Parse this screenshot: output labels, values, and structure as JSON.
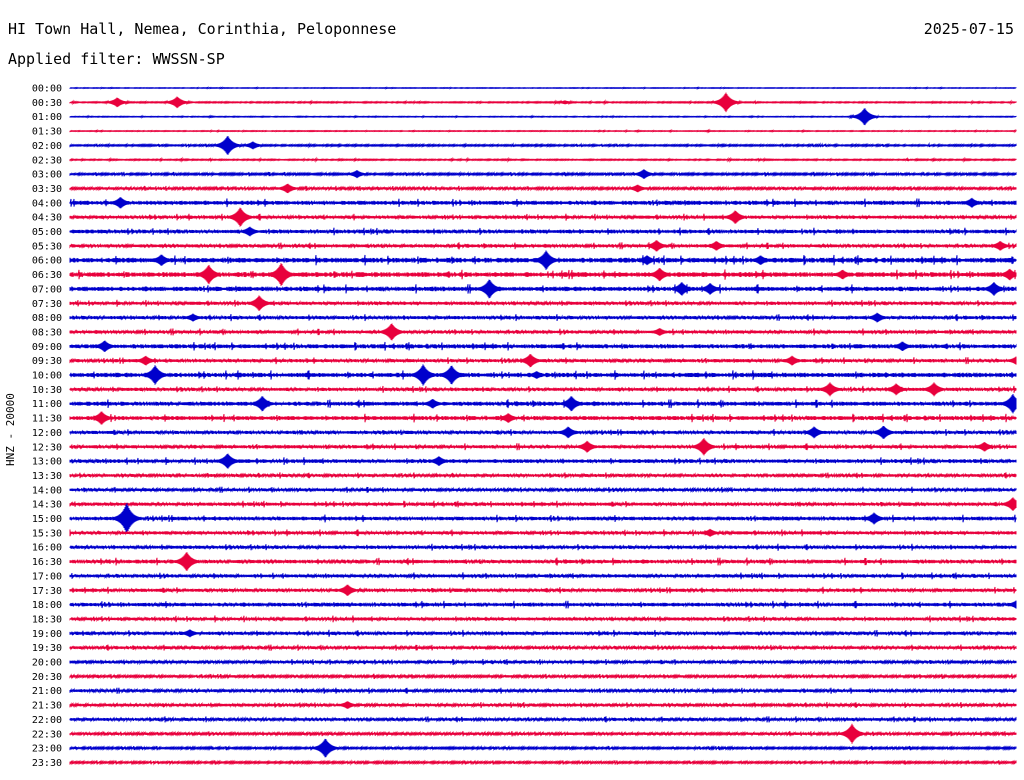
{
  "header": {
    "station": "HI Town Hall, Nemea, Corinthia, Peloponnese",
    "date": "2025-07-15",
    "filter": "Applied filter: WWSSN-SP",
    "channel": "HNZ - 20000"
  },
  "colors": {
    "trace_a": "#0000cc",
    "trace_b": "#e8003c",
    "background": "#ffffff"
  },
  "chart_data": {
    "type": "line",
    "subtype": "helicorder",
    "ylabel": "HNZ - 20000",
    "row_labels": [
      "00:00",
      "00:30",
      "01:00",
      "01:30",
      "02:00",
      "02:30",
      "03:00",
      "03:30",
      "04:00",
      "04:30",
      "05:00",
      "05:30",
      "06:00",
      "06:30",
      "07:00",
      "07:30",
      "08:00",
      "08:30",
      "09:00",
      "09:30",
      "10:00",
      "10:30",
      "11:00",
      "11:30",
      "12:00",
      "12:30",
      "13:00",
      "13:30",
      "14:00",
      "14:30",
      "15:00",
      "15:30",
      "16:00",
      "16:30",
      "17:00",
      "17:30",
      "18:00",
      "18:30",
      "19:00",
      "19:30",
      "20:00",
      "20:30",
      "21:00",
      "21:30",
      "22:00",
      "22:30",
      "23:00",
      "23:30"
    ],
    "x_range_minutes": [
      0,
      30
    ],
    "row_noise": [
      0.3,
      0.6,
      0.4,
      0.4,
      0.8,
      0.6,
      1.0,
      1.2,
      2.0,
      1.6,
      1.8,
      1.6,
      2.4,
      2.4,
      2.2,
      1.6,
      1.6,
      1.6,
      2.0,
      1.6,
      2.2,
      1.6,
      2.0,
      2.0,
      1.6,
      1.6,
      1.8,
      1.4,
      1.4,
      1.6,
      1.8,
      1.6,
      1.6,
      1.8,
      1.6,
      1.6,
      1.8,
      1.6,
      1.6,
      1.4,
      1.4,
      1.2,
      1.4,
      1.4,
      1.4,
      1.2,
      1.0,
      1.0
    ],
    "events": [
      {
        "row": 1,
        "minute": 1.5,
        "amplitude": 5
      },
      {
        "row": 1,
        "minute": 3.4,
        "amplitude": 6
      },
      {
        "row": 1,
        "minute": 15.7,
        "amplitude": 2
      },
      {
        "row": 1,
        "minute": 20.8,
        "amplitude": 10
      },
      {
        "row": 2,
        "minute": 25.2,
        "amplitude": 9
      },
      {
        "row": 4,
        "minute": 5.0,
        "amplitude": 10
      },
      {
        "row": 4,
        "minute": 5.8,
        "amplitude": 4
      },
      {
        "row": 6,
        "minute": 9.1,
        "amplitude": 4
      },
      {
        "row": 6,
        "minute": 18.2,
        "amplitude": 5
      },
      {
        "row": 7,
        "minute": 6.9,
        "amplitude": 5
      },
      {
        "row": 7,
        "minute": 18.0,
        "amplitude": 4
      },
      {
        "row": 8,
        "minute": 1.6,
        "amplitude": 6
      },
      {
        "row": 8,
        "minute": 28.6,
        "amplitude": 5
      },
      {
        "row": 9,
        "minute": 5.4,
        "amplitude": 10
      },
      {
        "row": 9,
        "minute": 21.1,
        "amplitude": 7
      },
      {
        "row": 10,
        "minute": 5.7,
        "amplitude": 5
      },
      {
        "row": 11,
        "minute": 18.6,
        "amplitude": 6
      },
      {
        "row": 11,
        "minute": 20.5,
        "amplitude": 5
      },
      {
        "row": 11,
        "minute": 29.5,
        "amplitude": 5
      },
      {
        "row": 12,
        "minute": 2.9,
        "amplitude": 6
      },
      {
        "row": 12,
        "minute": 15.1,
        "amplitude": 10
      },
      {
        "row": 12,
        "minute": 18.3,
        "amplitude": 5
      },
      {
        "row": 12,
        "minute": 21.9,
        "amplitude": 5
      },
      {
        "row": 13,
        "minute": 4.4,
        "amplitude": 10
      },
      {
        "row": 13,
        "minute": 6.7,
        "amplitude": 12
      },
      {
        "row": 13,
        "minute": 18.7,
        "amplitude": 7
      },
      {
        "row": 13,
        "minute": 24.5,
        "amplitude": 5
      },
      {
        "row": 13,
        "minute": 29.8,
        "amplitude": 6
      },
      {
        "row": 14,
        "minute": 13.3,
        "amplitude": 10
      },
      {
        "row": 14,
        "minute": 19.4,
        "amplitude": 7
      },
      {
        "row": 14,
        "minute": 20.3,
        "amplitude": 6
      },
      {
        "row": 14,
        "minute": 29.3,
        "amplitude": 7
      },
      {
        "row": 15,
        "minute": 6.0,
        "amplitude": 8
      },
      {
        "row": 16,
        "minute": 3.9,
        "amplitude": 4
      },
      {
        "row": 16,
        "minute": 25.6,
        "amplitude": 5
      },
      {
        "row": 17,
        "minute": 10.2,
        "amplitude": 9
      },
      {
        "row": 17,
        "minute": 18.7,
        "amplitude": 4
      },
      {
        "row": 18,
        "minute": 1.1,
        "amplitude": 6
      },
      {
        "row": 18,
        "minute": 26.4,
        "amplitude": 5
      },
      {
        "row": 19,
        "minute": 2.4,
        "amplitude": 5
      },
      {
        "row": 19,
        "minute": 14.6,
        "amplitude": 7
      },
      {
        "row": 19,
        "minute": 22.9,
        "amplitude": 5
      },
      {
        "row": 19,
        "minute": 30.0,
        "amplitude": 4
      },
      {
        "row": 20,
        "minute": 2.7,
        "amplitude": 10
      },
      {
        "row": 20,
        "minute": 11.2,
        "amplitude": 11
      },
      {
        "row": 20,
        "minute": 12.1,
        "amplitude": 10
      },
      {
        "row": 20,
        "minute": 14.8,
        "amplitude": 4
      },
      {
        "row": 21,
        "minute": 24.1,
        "amplitude": 7
      },
      {
        "row": 21,
        "minute": 26.2,
        "amplitude": 6
      },
      {
        "row": 21,
        "minute": 27.4,
        "amplitude": 7
      },
      {
        "row": 22,
        "minute": 6.1,
        "amplitude": 8
      },
      {
        "row": 22,
        "minute": 11.5,
        "amplitude": 5
      },
      {
        "row": 22,
        "minute": 15.9,
        "amplitude": 8
      },
      {
        "row": 22,
        "minute": 29.9,
        "amplitude": 10
      },
      {
        "row": 23,
        "minute": 1.0,
        "amplitude": 7
      },
      {
        "row": 23,
        "minute": 13.9,
        "amplitude": 5
      },
      {
        "row": 24,
        "minute": 15.8,
        "amplitude": 6
      },
      {
        "row": 24,
        "minute": 23.6,
        "amplitude": 6
      },
      {
        "row": 24,
        "minute": 25.8,
        "amplitude": 7
      },
      {
        "row": 25,
        "minute": 16.4,
        "amplitude": 6
      },
      {
        "row": 25,
        "minute": 20.1,
        "amplitude": 9
      },
      {
        "row": 25,
        "minute": 29.0,
        "amplitude": 5
      },
      {
        "row": 26,
        "minute": 5.0,
        "amplitude": 8
      },
      {
        "row": 26,
        "minute": 11.7,
        "amplitude": 5
      },
      {
        "row": 26,
        "minute": 30.2,
        "amplitude": 4
      },
      {
        "row": 29,
        "minute": 29.9,
        "amplitude": 7
      },
      {
        "row": 30,
        "minute": 1.8,
        "amplitude": 16
      },
      {
        "row": 30,
        "minute": 25.5,
        "amplitude": 6
      },
      {
        "row": 31,
        "minute": 20.3,
        "amplitude": 4
      },
      {
        "row": 33,
        "minute": 3.7,
        "amplitude": 10
      },
      {
        "row": 35,
        "minute": 8.8,
        "amplitude": 6
      },
      {
        "row": 36,
        "minute": 30.0,
        "amplitude": 4
      },
      {
        "row": 38,
        "minute": 3.8,
        "amplitude": 4
      },
      {
        "row": 43,
        "minute": 8.8,
        "amplitude": 4
      },
      {
        "row": 45,
        "minute": 24.8,
        "amplitude": 10
      },
      {
        "row": 46,
        "minute": 8.1,
        "amplitude": 10
      }
    ]
  }
}
